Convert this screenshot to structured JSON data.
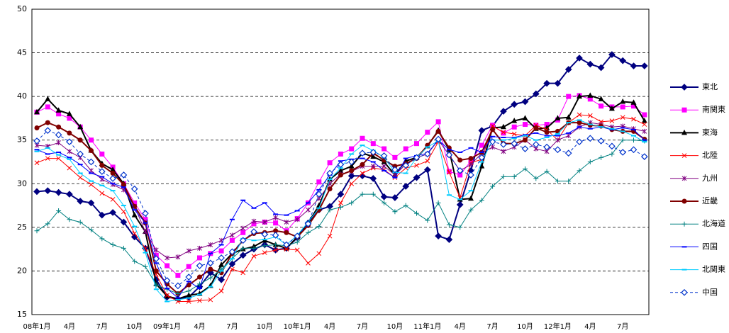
{
  "chart_data": {
    "type": "line",
    "categories": [
      "08年1月",
      null,
      null,
      "4月",
      null,
      null,
      "7月",
      null,
      null,
      "10月",
      null,
      null,
      "09年1月",
      null,
      null,
      "4月",
      null,
      null,
      "7月",
      null,
      null,
      "10月",
      null,
      null,
      "10年1月",
      null,
      null,
      "4月",
      null,
      null,
      "7月",
      null,
      null,
      "10月",
      null,
      null,
      "11年1月",
      null,
      null,
      "4月",
      null,
      null,
      "7月",
      null,
      null,
      "10月",
      null,
      null,
      "12年1月",
      null,
      null,
      "4月",
      null,
      null,
      "7月",
      null,
      null
    ],
    "ylim": [
      15,
      50
    ],
    "yticks": [
      15,
      20,
      25,
      30,
      35,
      40,
      45,
      50
    ],
    "grid": true,
    "legend": "right",
    "series": [
      {
        "name": "東北",
        "color": "#000080",
        "marker": "diamond",
        "width": 2,
        "values": [
          29.1,
          29.2,
          29.0,
          28.8,
          28.0,
          27.8,
          26.4,
          26.7,
          25.6,
          23.9,
          22.6,
          19.0,
          17.0,
          16.8,
          17.0,
          18.2,
          19.8,
          19.0,
          20.8,
          21.8,
          22.5,
          23.0,
          22.4,
          22.6,
          23.8,
          25.5,
          27.0,
          27.4,
          28.8,
          30.9,
          30.9,
          30.6,
          28.5,
          28.4,
          29.7,
          30.7,
          31.6,
          24.0,
          23.6,
          27.6,
          31.5,
          36.1,
          36.6,
          38.3,
          39.1,
          39.4,
          40.3,
          41.5,
          41.5,
          43.1,
          44.4,
          43.7,
          43.3,
          44.8,
          44.1,
          43.5,
          43.5
        ]
      },
      {
        "name": "南関東",
        "color": "#ff00ff",
        "marker": "square",
        "width": 1,
        "values": [
          38.2,
          38.8,
          38.0,
          37.5,
          36.5,
          35.0,
          33.4,
          31.9,
          30.0,
          27.8,
          25.9,
          21.8,
          20.6,
          19.5,
          20.5,
          21.5,
          22.0,
          22.3,
          23.5,
          24.4,
          25.4,
          25.6,
          25.5,
          24.6,
          26.0,
          27.8,
          30.2,
          32.4,
          33.4,
          34.0,
          35.2,
          34.6,
          34.0,
          33.0,
          34.0,
          34.6,
          35.9,
          37.1,
          31.4,
          31.0,
          32.6,
          34.4,
          36.7,
          35.8,
          36.5,
          36.8,
          36.7,
          36.8,
          37.3,
          40.0,
          40.1,
          39.7,
          38.9,
          38.8,
          38.8,
          38.9,
          37.9
        ]
      },
      {
        "name": "東海",
        "color": "#000000",
        "marker": "triangle",
        "width": 2,
        "values": [
          38.2,
          39.7,
          38.4,
          38.0,
          36.5,
          33.8,
          32.3,
          31.6,
          30.0,
          26.4,
          24.5,
          18.5,
          17.1,
          16.8,
          17.2,
          17.4,
          18.3,
          20.7,
          22.0,
          22.5,
          22.8,
          23.5,
          23.0,
          22.6,
          23.9,
          25.5,
          27.5,
          30.5,
          31.5,
          32.0,
          33.5,
          33.1,
          32.5,
          31.0,
          32.6,
          33.0,
          34.3,
          36.1,
          33.9,
          28.2,
          28.3,
          32.0,
          36.4,
          36.5,
          37.2,
          37.5,
          36.3,
          36.4,
          37.5,
          37.6,
          40.0,
          40.1,
          39.7,
          38.6,
          39.4,
          39.3,
          37.2
        ]
      },
      {
        "name": "北陸",
        "color": "#ff0000",
        "marker": "x",
        "width": 1,
        "values": [
          32.4,
          32.9,
          32.9,
          31.8,
          30.7,
          29.9,
          28.9,
          28.2,
          26.8,
          24.3,
          22.6,
          19.6,
          17.2,
          16.5,
          16.5,
          16.6,
          16.7,
          17.7,
          20.2,
          19.8,
          21.7,
          22.1,
          22.4,
          22.5,
          22.4,
          20.9,
          22.0,
          24.0,
          27.8,
          30.0,
          31.2,
          31.8,
          31.6,
          30.7,
          31.8,
          32.1,
          32.6,
          34.8,
          31.3,
          28.4,
          32.4,
          32.8,
          36.6,
          35.9,
          35.7,
          35.5,
          36.7,
          36.2,
          35.0,
          37.0,
          37.9,
          37.8,
          37.1,
          37.2,
          37.6,
          37.4,
          36.8
        ]
      },
      {
        "name": "九州",
        "color": "#800080",
        "marker": "star",
        "width": 1,
        "values": [
          34.4,
          34.3,
          34.7,
          33.7,
          33.0,
          31.5,
          30.5,
          29.9,
          29.3,
          27.4,
          24.5,
          22.4,
          21.5,
          21.6,
          22.3,
          22.6,
          23.0,
          23.5,
          24.1,
          24.9,
          25.7,
          25.6,
          26.1,
          25.6,
          25.9,
          27.0,
          28.3,
          30.0,
          31.1,
          31.4,
          32.0,
          32.0,
          32.0,
          31.0,
          32.2,
          33.0,
          33.4,
          35.0,
          33.3,
          31.5,
          32.2,
          33.5,
          34.2,
          33.7,
          34.2,
          35.0,
          34.0,
          33.7,
          35.0,
          35.5,
          36.5,
          37.0,
          36.8,
          36.5,
          36.6,
          36.3,
          36.0
        ]
      },
      {
        "name": "近畿",
        "color": "#800000",
        "marker": "circle",
        "width": 2,
        "values": [
          36.4,
          37.0,
          36.5,
          35.8,
          35.0,
          33.8,
          32.1,
          31.2,
          29.9,
          27.4,
          25.5,
          20.0,
          18.5,
          17.4,
          18.4,
          19.3,
          20.2,
          19.8,
          22.0,
          23.5,
          24.3,
          24.4,
          24.6,
          24.4,
          23.9,
          25.2,
          27.0,
          29.4,
          31.0,
          31.5,
          32.2,
          33.5,
          32.7,
          32.0,
          32.3,
          32.9,
          34.4,
          36.0,
          34.1,
          32.7,
          32.9,
          33.6,
          36.2,
          34.6,
          34.6,
          35.0,
          36.4,
          35.9,
          36.0,
          37.0,
          37.0,
          36.7,
          36.6,
          36.2,
          36.0,
          36.0,
          35.1
        ]
      },
      {
        "name": "北海道",
        "color": "#008080",
        "marker": "plus",
        "width": 1,
        "values": [
          24.6,
          25.4,
          26.9,
          25.9,
          25.6,
          24.7,
          23.7,
          23.0,
          22.6,
          21.1,
          20.5,
          18.4,
          17.9,
          17.4,
          17.7,
          18.5,
          19.2,
          20.2,
          21.4,
          22.6,
          22.6,
          22.9,
          23.0,
          22.9,
          23.3,
          24.4,
          25.1,
          27.0,
          27.3,
          27.8,
          28.8,
          28.8,
          27.8,
          26.8,
          27.5,
          26.6,
          25.8,
          27.8,
          25.3,
          25.0,
          27.0,
          28.1,
          29.7,
          30.8,
          30.8,
          31.7,
          30.6,
          31.4,
          30.3,
          30.3,
          31.5,
          32.5,
          33.0,
          33.4,
          35.0,
          35.0,
          34.9
        ]
      },
      {
        "name": "四国",
        "color": "#0000ff",
        "marker": "dash",
        "width": 1,
        "values": [
          33.9,
          33.4,
          33.6,
          33.0,
          32.2,
          31.2,
          30.8,
          30.0,
          29.6,
          27.0,
          25.5,
          20.9,
          18.0,
          16.9,
          18.8,
          18.0,
          22.0,
          23.0,
          25.9,
          28.1,
          27.2,
          27.8,
          26.5,
          26.4,
          26.9,
          27.8,
          29.3,
          31.0,
          32.6,
          32.8,
          32.9,
          32.5,
          31.5,
          30.7,
          32.9,
          33.2,
          33.5,
          35.0,
          33.9,
          33.6,
          34.1,
          33.6,
          35.4,
          35.3,
          35.3,
          35.6,
          35.8,
          35.5,
          35.5,
          35.8,
          36.5,
          36.3,
          36.5,
          36.2,
          36.4,
          36.2,
          35.0
        ]
      },
      {
        "name": "北関東",
        "color": "#00ccff",
        "marker": "dash",
        "width": 1,
        "values": [
          33.7,
          34.1,
          33.3,
          32.8,
          31.2,
          30.3,
          29.8,
          29.2,
          27.5,
          25.1,
          22.1,
          17.9,
          16.5,
          16.7,
          16.9,
          17.3,
          18.2,
          20.0,
          21.4,
          23.7,
          23.5,
          23.6,
          23.9,
          23.0,
          24.1,
          25.6,
          27.2,
          30.5,
          31.8,
          33.4,
          34.4,
          33.8,
          33.0,
          31.3,
          31.2,
          33.0,
          34.2,
          34.9,
          28.7,
          28.2,
          29.2,
          32.5,
          35.0,
          35.0,
          35.2,
          35.5,
          35.0,
          35.3,
          35.7,
          37.0,
          37.3,
          36.8,
          36.5,
          36.3,
          36.0,
          35.5,
          34.8
        ]
      },
      {
        "name": "中国",
        "color": "#0033cc",
        "marker": "open-diamond",
        "width": 1,
        "dashed": true,
        "values": [
          34.9,
          36.1,
          35.6,
          34.8,
          33.4,
          32.5,
          31.4,
          30.6,
          31.0,
          29.4,
          26.6,
          21.4,
          18.9,
          18.3,
          19.3,
          20.6,
          20.9,
          21.5,
          22.2,
          23.5,
          24.5,
          24.2,
          24.1,
          23.0,
          24.0,
          25.4,
          28.8,
          31.2,
          32.2,
          32.5,
          33.5,
          33.6,
          33.2,
          31.6,
          32.1,
          33.0,
          33.4,
          35.1,
          33.3,
          31.5,
          31.0,
          33.0,
          34.8,
          34.5,
          34.6,
          34.0,
          34.5,
          34.2,
          33.9,
          33.5,
          34.8,
          35.2,
          34.9,
          34.3,
          33.6,
          33.9,
          33.1
        ]
      }
    ]
  }
}
